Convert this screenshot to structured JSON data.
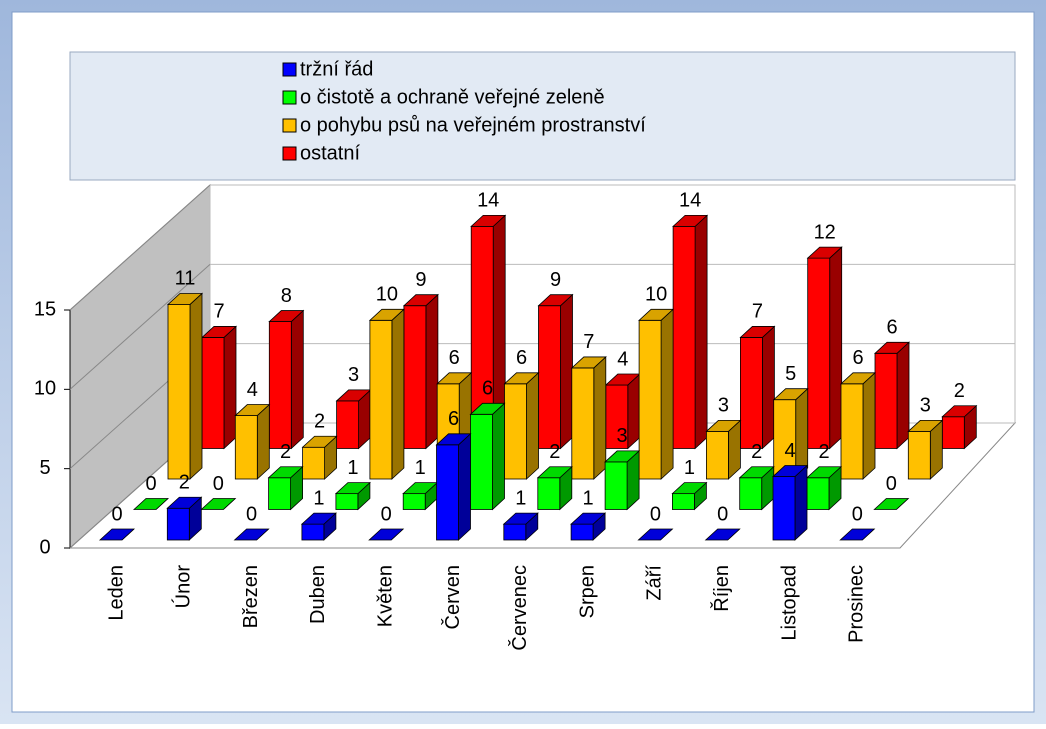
{
  "chart_data": {
    "type": "bar3d",
    "categories": [
      "Leden",
      "Únor",
      "Březen",
      "Duben",
      "Květen",
      "Červen",
      "Červenec",
      "Srpen",
      "Září",
      "Říjen",
      "Listopad",
      "Prosinec"
    ],
    "series": [
      {
        "name": "tržní řád",
        "color": "#0000ff",
        "values": [
          0,
          2,
          0,
          1,
          0,
          6,
          1,
          1,
          0,
          0,
          4,
          0
        ]
      },
      {
        "name": "o čistotě a ochraně veřejné zeleně",
        "color": "#00ff00",
        "values": [
          0,
          0,
          2,
          1,
          1,
          6,
          2,
          3,
          1,
          2,
          2,
          0
        ]
      },
      {
        "name": "o pohybu psů na veřejném prostranství",
        "color": "#ffc000",
        "values": [
          11,
          4,
          2,
          10,
          6,
          6,
          7,
          10,
          3,
          5,
          6,
          3
        ]
      },
      {
        "name": "ostatní",
        "color": "#ff0000",
        "values": [
          7,
          8,
          3,
          9,
          14,
          9,
          4,
          14,
          7,
          12,
          6,
          2
        ]
      }
    ],
    "ylim": [
      0,
      15
    ],
    "yticks": [
      0,
      5,
      10,
      15
    ],
    "grid": true
  }
}
